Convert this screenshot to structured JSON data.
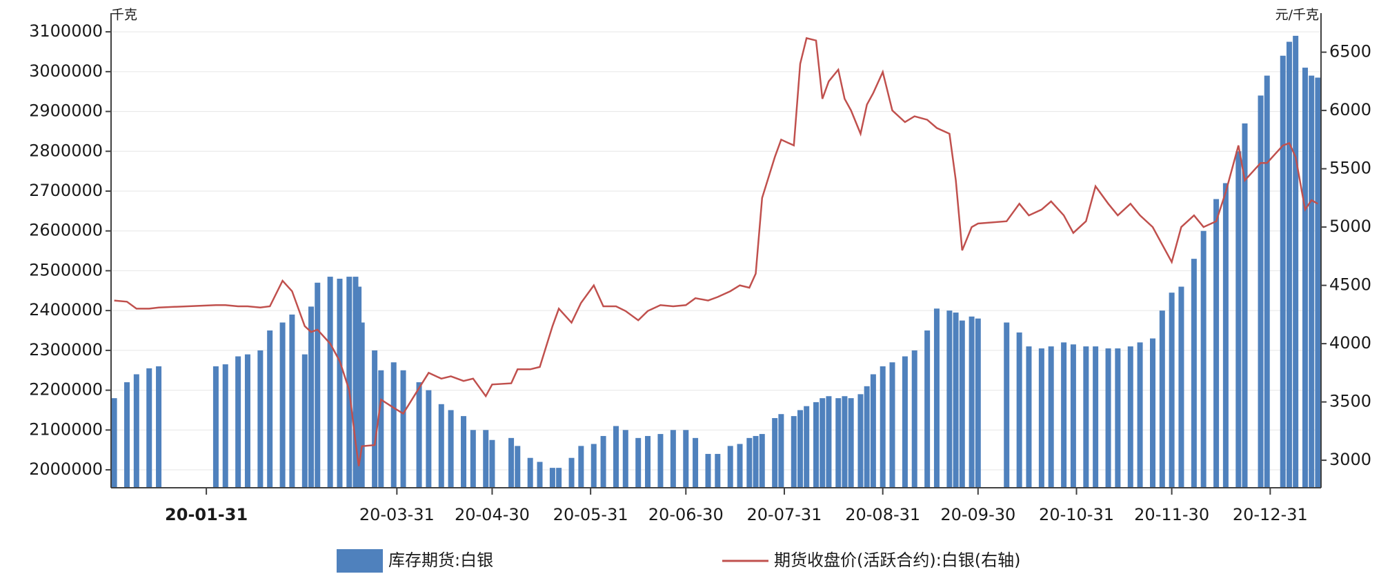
{
  "chart_data": {
    "type": "combo",
    "y_unit": "千克",
    "y2_unit": "元/千克",
    "x": [
      "20-01-02",
      "20-01-06",
      "20-01-09",
      "20-01-13",
      "20-01-16",
      "20-02-03",
      "20-02-06",
      "20-02-10",
      "20-02-13",
      "20-02-17",
      "20-02-20",
      "20-02-24",
      "20-02-27",
      "20-03-02",
      "20-03-04",
      "20-03-06",
      "20-03-10",
      "20-03-13",
      "20-03-16",
      "20-03-18",
      "20-03-19",
      "20-03-20",
      "20-03-24",
      "20-03-26",
      "20-03-30",
      "20-04-02",
      "20-04-07",
      "20-04-10",
      "20-04-14",
      "20-04-17",
      "20-04-21",
      "20-04-24",
      "20-04-28",
      "20-04-30",
      "20-05-06",
      "20-05-08",
      "20-05-12",
      "20-05-15",
      "20-05-19",
      "20-05-21",
      "20-05-25",
      "20-05-28",
      "20-06-01",
      "20-06-04",
      "20-06-08",
      "20-06-11",
      "20-06-15",
      "20-06-18",
      "20-06-22",
      "20-06-26",
      "20-06-30",
      "20-07-03",
      "20-07-07",
      "20-07-10",
      "20-07-14",
      "20-07-17",
      "20-07-20",
      "20-07-22",
      "20-07-24",
      "20-07-28",
      "20-07-30",
      "20-08-03",
      "20-08-05",
      "20-08-07",
      "20-08-10",
      "20-08-12",
      "20-08-14",
      "20-08-17",
      "20-08-19",
      "20-08-21",
      "20-08-24",
      "20-08-26",
      "20-08-28",
      "20-08-31",
      "20-09-03",
      "20-09-07",
      "20-09-10",
      "20-09-14",
      "20-09-17",
      "20-09-21",
      "20-09-23",
      "20-09-25",
      "20-09-28",
      "20-09-30",
      "20-10-09",
      "20-10-13",
      "20-10-16",
      "20-10-20",
      "20-10-23",
      "20-10-27",
      "20-10-30",
      "20-11-03",
      "20-11-06",
      "20-11-10",
      "20-11-13",
      "20-11-17",
      "20-11-20",
      "20-11-24",
      "20-11-27",
      "20-11-30",
      "20-12-03",
      "20-12-07",
      "20-12-10",
      "20-12-14",
      "20-12-17",
      "20-12-21",
      "20-12-23",
      "20-12-28",
      "20-12-30",
      "21-01-04",
      "21-01-06",
      "21-01-08",
      "21-01-11",
      "21-01-13",
      "21-01-15"
    ],
    "series": [
      {
        "name": "库存期货:白银",
        "type": "bar",
        "color": "#4f81bd",
        "values": [
          2180000,
          2220000,
          2240000,
          2255000,
          2260000,
          2260000,
          2265000,
          2285000,
          2290000,
          2300000,
          2350000,
          2370000,
          2390000,
          2290000,
          2410000,
          2470000,
          2485000,
          2480000,
          2485000,
          2485000,
          2460000,
          2370000,
          2300000,
          2250000,
          2270000,
          2250000,
          2220000,
          2200000,
          2165000,
          2150000,
          2135000,
          2100000,
          2100000,
          2075000,
          2080000,
          2060000,
          2030000,
          2020000,
          2005000,
          2005000,
          2030000,
          2060000,
          2065000,
          2085000,
          2110000,
          2100000,
          2080000,
          2085000,
          2090000,
          2100000,
          2100000,
          2080000,
          2040000,
          2040000,
          2060000,
          2065000,
          2080000,
          2085000,
          2090000,
          2130000,
          2140000,
          2135000,
          2150000,
          2160000,
          2170000,
          2180000,
          2185000,
          2180000,
          2185000,
          2180000,
          2190000,
          2210000,
          2240000,
          2260000,
          2270000,
          2285000,
          2300000,
          2350000,
          2405000,
          2400000,
          2395000,
          2375000,
          2385000,
          2380000,
          2370000,
          2345000,
          2310000,
          2305000,
          2310000,
          2320000,
          2315000,
          2310000,
          2310000,
          2305000,
          2305000,
          2310000,
          2320000,
          2330000,
          2400000,
          2445000,
          2460000,
          2530000,
          2600000,
          2680000,
          2720000,
          2800000,
          2870000,
          2940000,
          2990000,
          3040000,
          3075000,
          3090000,
          3010000,
          2990000,
          2985000
        ]
      },
      {
        "name": "期货收盘价(活跃合约):白银(右轴)",
        "type": "line",
        "axis": "y2",
        "color": "#c0504d",
        "values": [
          4370,
          4360,
          4300,
          4300,
          4310,
          4330,
          4330,
          4320,
          4320,
          4310,
          4320,
          4540,
          4450,
          4150,
          4100,
          4120,
          4000,
          3850,
          3600,
          3150,
          2950,
          3120,
          3130,
          3520,
          3450,
          3400,
          3620,
          3750,
          3700,
          3720,
          3680,
          3700,
          3550,
          3650,
          3660,
          3780,
          3780,
          3800,
          4150,
          4300,
          4180,
          4350,
          4500,
          4320,
          4320,
          4280,
          4200,
          4280,
          4330,
          4320,
          4330,
          4390,
          4370,
          4400,
          4450,
          4500,
          4480,
          4600,
          5250,
          5600,
          5750,
          5700,
          6400,
          6620,
          6600,
          6100,
          6250,
          6350,
          6100,
          6000,
          5800,
          6050,
          6150,
          6330,
          6000,
          5900,
          5950,
          5920,
          5850,
          5800,
          5400,
          4800,
          5000,
          5030,
          5050,
          5200,
          5100,
          5150,
          5220,
          5100,
          4950,
          5050,
          5350,
          5200,
          5100,
          5200,
          5100,
          5000,
          4850,
          4700,
          5000,
          5100,
          5000,
          5050,
          5300,
          5700,
          5400,
          5550,
          5550,
          5700,
          5720,
          5600,
          5150,
          5230,
          5200
        ]
      }
    ],
    "xlim": [
      "20-01-01",
      "21-01-16"
    ],
    "xticks": [
      "20-01-31",
      "20-03-31",
      "20-04-30",
      "20-05-31",
      "20-06-30",
      "20-07-31",
      "20-08-31",
      "20-09-30",
      "20-10-31",
      "20-11-30",
      "20-12-31"
    ],
    "ylim": [
      1955000,
      3147000
    ],
    "yticks": [
      2000000,
      2100000,
      2200000,
      2300000,
      2400000,
      2500000,
      2600000,
      2700000,
      2800000,
      2900000,
      3000000,
      3100000
    ],
    "y2lim": [
      2764,
      6835
    ],
    "y2ticks": [
      3000,
      3500,
      4000,
      4500,
      5000,
      5500,
      6000,
      6500
    ],
    "grid": true,
    "legend": "bottom"
  }
}
